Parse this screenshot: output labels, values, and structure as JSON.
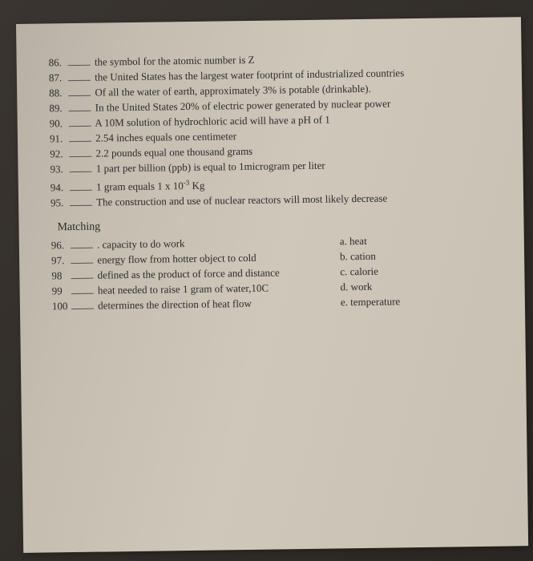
{
  "page": {
    "background_color": "#3a3530",
    "paper_color": "#c5bdb0",
    "text_color": "#2b2b2b",
    "font_family": "Times New Roman",
    "base_fontsize": 13,
    "rotation_deg": -0.8
  },
  "true_false": {
    "items": [
      {
        "num": "86.",
        "text": "the symbol for the atomic number is Z"
      },
      {
        "num": "87.",
        "text": "the United States has the largest water footprint of industrialized countries"
      },
      {
        "num": "88.",
        "text": "Of all the water of earth, approximately 3% is potable (drinkable)."
      },
      {
        "num": "89.",
        "text": "In the United States 20% of electric power generated by nuclear power"
      },
      {
        "num": "90.",
        "text": "A 10M solution of hydrochloric acid will have a pH of 1"
      },
      {
        "num": "91.",
        "text": "2.54 inches equals one centimeter"
      },
      {
        "num": "92.",
        "text": "2.2 pounds equal one thousand grams"
      },
      {
        "num": "93.",
        "text": "1 part per billion (ppb) is equal to 1microgram per liter"
      },
      {
        "num": "94.",
        "text_html": "1 gram equals 1 x 10<span class=\"sup\">-3</span> Kg"
      },
      {
        "num": "95.",
        "text": "The construction and use of nuclear reactors will most likely decrease"
      }
    ]
  },
  "matching": {
    "title": "Matching",
    "left": [
      {
        "num": "96.",
        "text": ". capacity to do work"
      },
      {
        "num": "97.",
        "text": "energy flow from hotter object to cold"
      },
      {
        "num": "98",
        "text": "defined as the product of force and distance"
      },
      {
        "num": "99",
        "text": "heat needed to raise 1 gram of water,10C"
      },
      {
        "num": "100",
        "text": "determines the direction of heat flow"
      }
    ],
    "right": [
      {
        "letter": "a.",
        "text": "heat"
      },
      {
        "letter": "b.",
        "text": "cation"
      },
      {
        "letter": "c.",
        "text": "calorie"
      },
      {
        "letter": "d.",
        "text": "work"
      },
      {
        "letter": "e.",
        "text": "temperature"
      }
    ]
  }
}
